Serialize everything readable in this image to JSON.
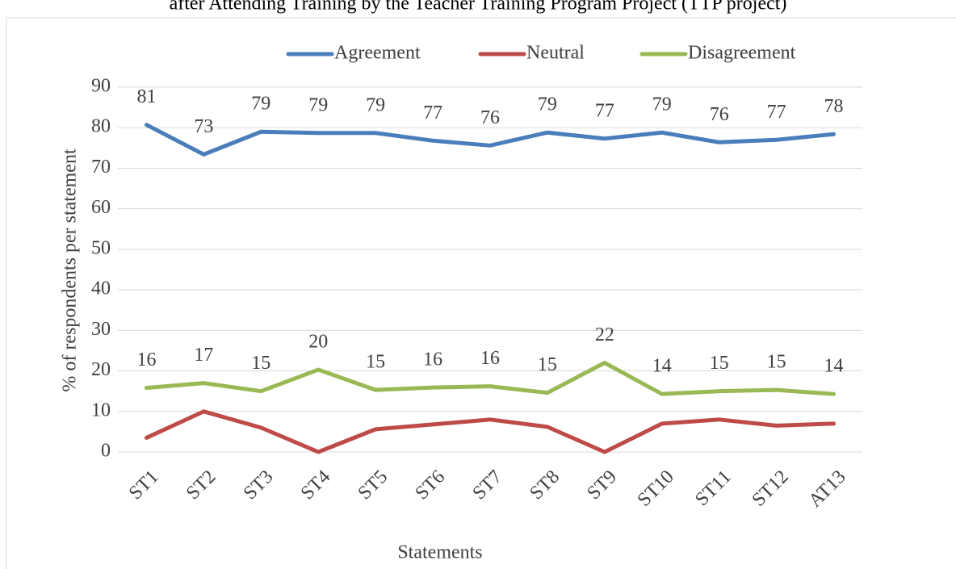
{
  "chart_data": {
    "type": "line",
    "title": "after Attending Training by the Teacher Training Program Project (TTP project)",
    "y_label": "%  of respondents per statement",
    "x_label": "Statements",
    "categories": [
      "ST1",
      "ST2",
      "ST3",
      "ST4",
      "ST5",
      "ST6",
      "ST7",
      "ST8",
      "ST9",
      "ST10",
      "ST11",
      "ST12",
      "AT13"
    ],
    "series": [
      {
        "name": "Agreement",
        "color": "#4a7ebb",
        "values": [
          80.7,
          73.4,
          79,
          78.7,
          78.7,
          76.8,
          75.6,
          78.8,
          77.3,
          78.8,
          76.4,
          77,
          78.4
        ],
        "value_labels": [
          "81",
          "73",
          "79",
          "79",
          "79",
          "77",
          "76",
          "79",
          "77",
          "79",
          "76",
          "77",
          "78"
        ]
      },
      {
        "name": "Neutral",
        "color": "#be4b48",
        "values": [
          3.5,
          10,
          6,
          0,
          5.6,
          6.8,
          8,
          6.2,
          0,
          7,
          8,
          6.5,
          7
        ]
      },
      {
        "name": "Disagreement",
        "color": "#98b954",
        "values": [
          15.8,
          17,
          15,
          20.3,
          15.3,
          15.9,
          16.2,
          14.6,
          22,
          14.3,
          15,
          15.3,
          14.3
        ],
        "value_labels": [
          "16",
          "17",
          "15",
          "20",
          "15",
          "16",
          "16",
          "15",
          "22",
          "14",
          "15",
          "15",
          "14"
        ]
      }
    ],
    "ylim": [
      0,
      90
    ],
    "yticks": [
      0,
      10,
      20,
      30,
      40,
      50,
      60,
      70,
      80,
      90
    ],
    "grid": true,
    "legend": "top"
  }
}
